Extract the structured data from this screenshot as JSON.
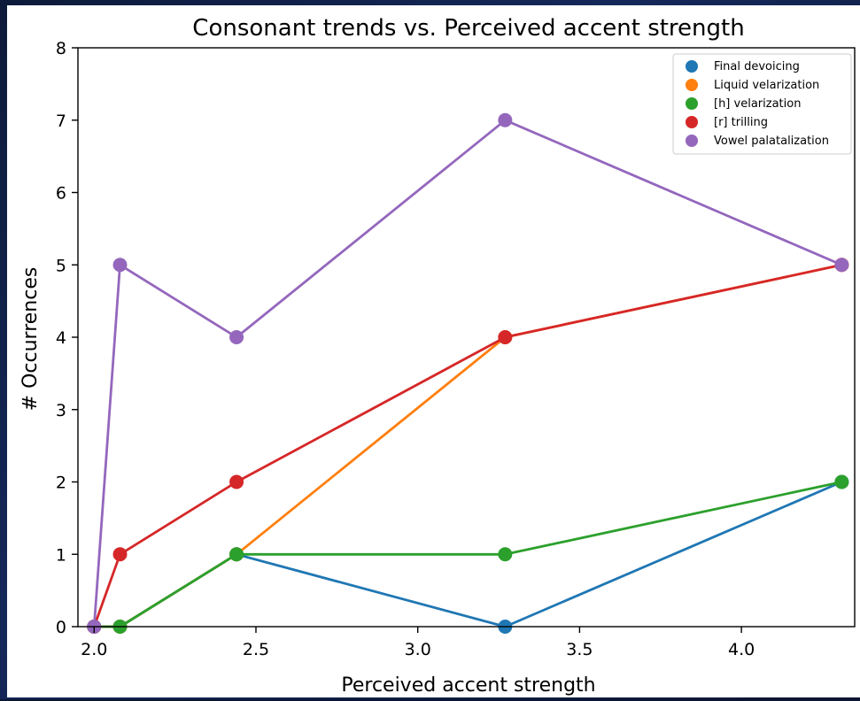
{
  "chart_data": {
    "type": "line",
    "title": "Consonant trends vs. Perceived accent strength",
    "xlabel": "Perceived accent strength",
    "ylabel": "# Occurrences",
    "xlim": [
      1.95,
      4.35
    ],
    "ylim": [
      0,
      8
    ],
    "xticks": [
      "2.0",
      "2.5",
      "3.0",
      "3.5",
      "4.0"
    ],
    "yticks": [
      "0",
      "1",
      "2",
      "3",
      "4",
      "5",
      "6",
      "7",
      "8"
    ],
    "legend_position": "top-right",
    "grid": false,
    "series": [
      {
        "name": "Final devoicing",
        "color": "#1f77b4",
        "x": [
          2.0,
          2.08,
          2.44,
          3.27,
          4.31
        ],
        "values": [
          0,
          0,
          1,
          0,
          2
        ]
      },
      {
        "name": "Liquid velarization",
        "color": "#ff7f0e",
        "x": [
          2.0,
          2.08,
          2.44,
          3.27,
          4.31
        ],
        "values": [
          0,
          0,
          1,
          4,
          5
        ]
      },
      {
        "name": "[h] velarization",
        "color": "#2ca02c",
        "x": [
          2.0,
          2.08,
          2.44,
          3.27,
          4.31
        ],
        "values": [
          0,
          0,
          1,
          1,
          2
        ]
      },
      {
        "name": "[r] trilling",
        "color": "#d62728",
        "x": [
          2.0,
          2.08,
          2.44,
          3.27,
          4.31
        ],
        "values": [
          0,
          1,
          2,
          4,
          5
        ]
      },
      {
        "name": "Vowel palatalization",
        "color": "#9467bd",
        "x": [
          2.0,
          2.08,
          2.44,
          3.27,
          4.31
        ],
        "values": [
          0,
          5,
          4,
          7,
          5
        ]
      }
    ]
  }
}
